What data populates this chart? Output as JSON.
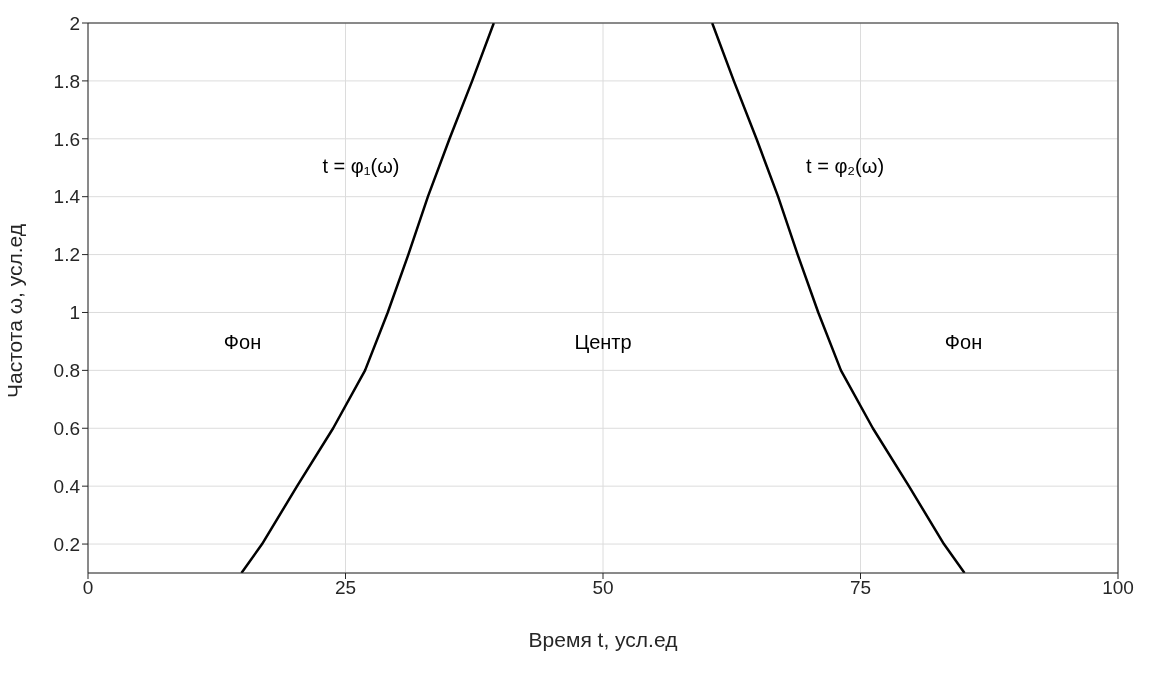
{
  "chart_data": {
    "type": "line",
    "xlabel": "Время t, усл.ед",
    "ylabel": "Частота ω, усл.ед",
    "xlim": [
      0,
      100
    ],
    "ylim": [
      0.1,
      2
    ],
    "xticks": [
      0,
      25,
      50,
      75,
      100
    ],
    "yticks": [
      0.2,
      0.4,
      0.6,
      0.8,
      1,
      1.2,
      1.4,
      1.6,
      1.8,
      2
    ],
    "grid": true,
    "marker": "none",
    "line_style": "solid",
    "series": [
      {
        "color": "#000000",
        "x": [
          14.9,
          16.9,
          20.3,
          23.8,
          26.9,
          29.1,
          31.1,
          33.0,
          35.1,
          37.3,
          39.4
        ],
        "values": [
          0.1,
          0.2,
          0.4,
          0.6,
          0.8,
          1,
          1.2,
          1.4,
          1.6,
          1.8,
          2
        ]
      },
      {
        "color": "#000000",
        "x": [
          60.6,
          62.7,
          64.9,
          67.0,
          68.9,
          70.9,
          73.1,
          76.2,
          79.7,
          83.1,
          85.1
        ],
        "values": [
          2,
          1.8,
          1.6,
          1.4,
          1.2,
          1,
          0.8,
          0.6,
          0.4,
          0.2,
          0.1
        ]
      }
    ],
    "annotations": [
      "t = φ₁(ω)",
      "t = φ₂(ω)",
      "Фон",
      "Центр",
      "Фон"
    ]
  }
}
